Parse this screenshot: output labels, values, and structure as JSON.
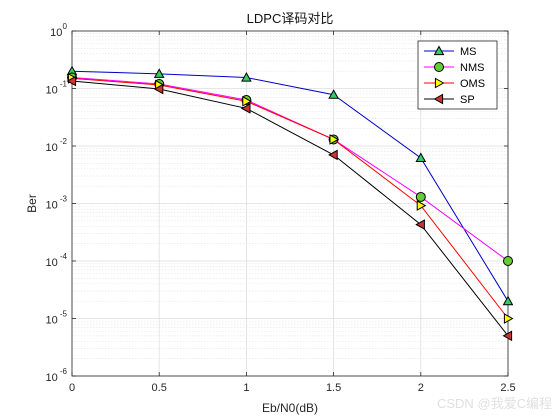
{
  "watermark": "CSDN @我爱C编程",
  "chart_data": {
    "type": "line",
    "title": "LDPC译码对比",
    "xlabel": "Eb/N0(dB)",
    "ylabel": "Ber",
    "yscale": "log",
    "xlim": [
      0,
      2.5
    ],
    "ylim": [
      1e-06,
      1
    ],
    "grid": true,
    "legend_position": "top-right",
    "x_ticks": [
      "0",
      "0.5",
      "1",
      "1.5",
      "2",
      "2.5"
    ],
    "y_ticks": [
      {
        "base": "10",
        "exp": "0"
      },
      {
        "base": "10",
        "exp": "-1"
      },
      {
        "base": "10",
        "exp": "-2"
      },
      {
        "base": "10",
        "exp": "-3"
      },
      {
        "base": "10",
        "exp": "-4"
      },
      {
        "base": "10",
        "exp": "-5"
      },
      {
        "base": "10",
        "exp": "-6"
      }
    ],
    "x": [
      0,
      0.5,
      1,
      1.5,
      2,
      2.5
    ],
    "series": [
      {
        "name": "MS",
        "color": "#0000cc",
        "marker": "triangle-up",
        "marker_fill": "#33cc66",
        "values": [
          0.2,
          0.18,
          0.155,
          0.078,
          0.0062,
          2e-05
        ]
      },
      {
        "name": "NMS",
        "color": "#ff00ff",
        "marker": "circle",
        "marker_fill": "#66cc33",
        "values": [
          0.155,
          0.12,
          0.063,
          0.013,
          0.0013,
          0.0001
        ]
      },
      {
        "name": "OMS",
        "color": "#ff0000",
        "marker": "triangle-right",
        "marker_fill": "#ffff00",
        "values": [
          0.15,
          0.115,
          0.06,
          0.013,
          0.00092,
          1e-05
        ]
      },
      {
        "name": "SP",
        "color": "#000000",
        "marker": "triangle-left",
        "marker_fill": "#cc3333",
        "values": [
          0.135,
          0.098,
          0.045,
          0.007,
          0.00043,
          5e-06
        ]
      }
    ]
  }
}
